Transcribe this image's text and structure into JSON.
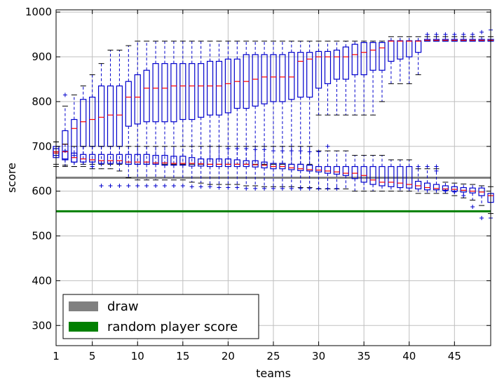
{
  "chart_data": {
    "type": "box",
    "xlabel": "teams",
    "ylabel": "score",
    "xlim": [
      1,
      49
    ],
    "ylim": [
      255,
      1005
    ],
    "xticks": [
      1,
      5,
      10,
      15,
      20,
      25,
      30,
      35,
      40,
      45
    ],
    "yticks": [
      300,
      400,
      500,
      600,
      700,
      800,
      900,
      1000
    ],
    "grid": true,
    "legend_position": "bottom-left",
    "colors": {
      "box": "#0000cc",
      "median": "#ff0000",
      "outlier": "#0000cc",
      "draw": "#808080",
      "random": "#008000",
      "grid": "#bfbfbf"
    },
    "hlines": [
      {
        "name": "draw",
        "y": 630,
        "color": "#808080"
      },
      {
        "name": "random player score",
        "y": 555,
        "color": "#008000"
      }
    ],
    "series": [
      {
        "group": "upper",
        "x": [
          1,
          2,
          3,
          4,
          5,
          6,
          7,
          8,
          9,
          10,
          11,
          12,
          13,
          14,
          15,
          16,
          17,
          18,
          19,
          20,
          21,
          22,
          23,
          24,
          25,
          26,
          27,
          28,
          29,
          30,
          31,
          32,
          33,
          34,
          35,
          36,
          37,
          38,
          39,
          40,
          41,
          42,
          43,
          44,
          45,
          46,
          47,
          48,
          49
        ],
        "q1": [
          675,
          670,
          665,
          700,
          700,
          700,
          700,
          700,
          745,
          750,
          755,
          755,
          755,
          755,
          760,
          760,
          765,
          770,
          770,
          775,
          785,
          785,
          790,
          795,
          800,
          800,
          805,
          810,
          810,
          830,
          840,
          850,
          850,
          860,
          860,
          870,
          870,
          890,
          895,
          900,
          910,
          935,
          935,
          935,
          935,
          935,
          935,
          935,
          935
        ],
        "median": [
          685,
          705,
          740,
          755,
          760,
          765,
          770,
          770,
          810,
          810,
          830,
          830,
          830,
          835,
          835,
          835,
          835,
          835,
          835,
          840,
          845,
          845,
          850,
          855,
          855,
          855,
          855,
          890,
          895,
          900,
          900,
          900,
          900,
          905,
          910,
          915,
          920,
          935,
          935,
          935,
          935,
          937,
          937,
          937,
          937,
          937,
          937,
          937,
          937
        ],
        "q3": [
          695,
          735,
          760,
          805,
          810,
          835,
          835,
          835,
          845,
          860,
          870,
          885,
          885,
          885,
          885,
          885,
          885,
          890,
          890,
          895,
          895,
          905,
          905,
          905,
          905,
          905,
          910,
          910,
          910,
          912,
          912,
          915,
          922,
          928,
          932,
          932,
          932,
          936,
          936,
          936,
          936,
          939,
          939,
          939,
          939,
          939,
          939,
          939,
          939
        ],
        "whisker_low": [
          655,
          655,
          655,
          660,
          660,
          660,
          660,
          660,
          660,
          660,
          660,
          660,
          660,
          660,
          660,
          660,
          660,
          660,
          660,
          660,
          660,
          660,
          660,
          660,
          660,
          660,
          660,
          660,
          660,
          770,
          770,
          770,
          770,
          770,
          770,
          770,
          800,
          840,
          840,
          840,
          860,
          935,
          935,
          935,
          935,
          935,
          935,
          935,
          935
        ],
        "whisker_high": [
          710,
          790,
          815,
          835,
          860,
          885,
          915,
          915,
          925,
          935,
          935,
          935,
          935,
          935,
          935,
          935,
          935,
          935,
          935,
          935,
          935,
          935,
          935,
          935,
          935,
          935,
          935,
          935,
          935,
          935,
          935,
          935,
          935,
          935,
          935,
          935,
          935,
          945,
          945,
          945,
          945,
          945,
          945,
          945,
          945,
          945,
          945,
          945,
          945
        ],
        "outliers": [
          [
            1,
            695
          ],
          [
            2,
            815
          ],
          [
            42,
            950
          ],
          [
            43,
            950
          ],
          [
            44,
            950
          ],
          [
            45,
            950
          ],
          [
            46,
            950
          ],
          [
            47,
            950
          ],
          [
            48,
            955
          ],
          [
            49,
            960
          ]
        ]
      },
      {
        "group": "lower",
        "x": [
          1,
          2,
          3,
          4,
          5,
          6,
          7,
          8,
          9,
          10,
          11,
          12,
          13,
          14,
          15,
          16,
          17,
          18,
          19,
          20,
          21,
          22,
          23,
          24,
          25,
          26,
          27,
          28,
          29,
          30,
          31,
          32,
          33,
          34,
          35,
          36,
          37,
          38,
          39,
          40,
          41,
          42,
          43,
          44,
          45,
          46,
          47,
          48,
          49
        ],
        "q1": [
          680,
          672,
          665,
          665,
          665,
          662,
          662,
          662,
          660,
          660,
          660,
          660,
          658,
          658,
          658,
          656,
          656,
          655,
          655,
          655,
          655,
          655,
          654,
          652,
          650,
          650,
          648,
          646,
          645,
          643,
          640,
          638,
          635,
          628,
          620,
          615,
          612,
          610,
          608,
          607,
          605,
          603,
          603,
          602,
          600,
          598,
          596,
          590,
          575
        ],
        "median": [
          688,
          688,
          675,
          672,
          670,
          668,
          668,
          668,
          665,
          665,
          665,
          663,
          663,
          662,
          662,
          662,
          661,
          660,
          660,
          660,
          660,
          660,
          659,
          658,
          655,
          655,
          652,
          650,
          648,
          647,
          645,
          643,
          640,
          640,
          635,
          625,
          620,
          620,
          618,
          615,
          612,
          608,
          606,
          605,
          604,
          602,
          600,
          598,
          590
        ],
        "q3": [
          700,
          688,
          685,
          682,
          682,
          682,
          682,
          682,
          682,
          682,
          682,
          680,
          680,
          678,
          678,
          675,
          672,
          672,
          672,
          672,
          670,
          668,
          668,
          665,
          662,
          662,
          660,
          660,
          658,
          655,
          655,
          655,
          655,
          655,
          655,
          655,
          655,
          655,
          655,
          655,
          622,
          618,
          615,
          612,
          610,
          608,
          607,
          607,
          595
        ],
        "whisker_low": [
          660,
          658,
          655,
          655,
          650,
          650,
          650,
          645,
          630,
          625,
          625,
          625,
          625,
          625,
          625,
          620,
          618,
          615,
          615,
          615,
          615,
          612,
          612,
          610,
          610,
          610,
          610,
          608,
          608,
          605,
          605,
          605,
          605,
          600,
          600,
          600,
          600,
          600,
          600,
          600,
          595,
          595,
          595,
          595,
          590,
          585,
          580,
          568,
          550
        ],
        "whisker_high": [
          710,
          705,
          700,
          700,
          700,
          700,
          700,
          700,
          700,
          700,
          700,
          700,
          700,
          700,
          700,
          700,
          700,
          700,
          700,
          700,
          700,
          700,
          700,
          700,
          700,
          700,
          700,
          700,
          700,
          690,
          690,
          690,
          690,
          680,
          680,
          680,
          680,
          670,
          670,
          670,
          650,
          650,
          650,
          620,
          618,
          616,
          615,
          612,
          610
        ],
        "outliers": [
          [
            2,
            690
          ],
          [
            3,
            680
          ],
          [
            5,
            655
          ],
          [
            6,
            612
          ],
          [
            7,
            612
          ],
          [
            8,
            612
          ],
          [
            9,
            612
          ],
          [
            10,
            612
          ],
          [
            11,
            612
          ],
          [
            12,
            612
          ],
          [
            13,
            612
          ],
          [
            14,
            612
          ],
          [
            15,
            612
          ],
          [
            16,
            610
          ],
          [
            17,
            610
          ],
          [
            18,
            610
          ],
          [
            19,
            608
          ],
          [
            20,
            608
          ],
          [
            21,
            608
          ],
          [
            22,
            606
          ],
          [
            23,
            606
          ],
          [
            24,
            606
          ],
          [
            25,
            606
          ],
          [
            26,
            606
          ],
          [
            27,
            606
          ],
          [
            28,
            606
          ],
          [
            29,
            606
          ],
          [
            30,
            606
          ],
          [
            31,
            606
          ],
          [
            32,
            606
          ],
          [
            20,
            695
          ],
          [
            21,
            695
          ],
          [
            22,
            695
          ],
          [
            23,
            693
          ],
          [
            24,
            693
          ],
          [
            25,
            690
          ],
          [
            26,
            690
          ],
          [
            27,
            690
          ],
          [
            28,
            690
          ],
          [
            29,
            688
          ],
          [
            30,
            688
          ],
          [
            31,
            700
          ],
          [
            41,
            655
          ],
          [
            42,
            655
          ],
          [
            43,
            655
          ],
          [
            43,
            645
          ],
          [
            44,
            600
          ],
          [
            45,
            598
          ],
          [
            46,
            590
          ],
          [
            47,
            565
          ],
          [
            48,
            540
          ],
          [
            49,
            540
          ]
        ]
      }
    ]
  },
  "legend": {
    "items": [
      {
        "label": "draw",
        "color": "#808080"
      },
      {
        "label": "random player score",
        "color": "#008000"
      }
    ]
  }
}
